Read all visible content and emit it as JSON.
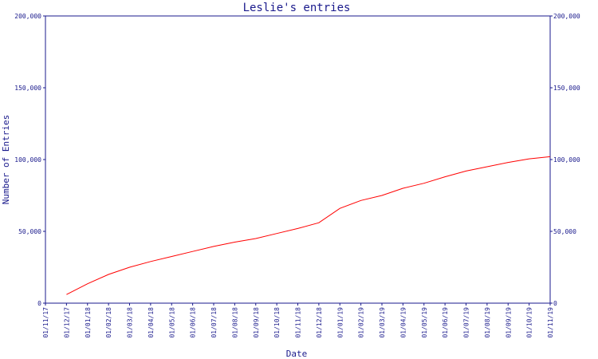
{
  "chart_data": {
    "type": "line",
    "title": "Leslie's entries",
    "xlabel": "Date",
    "ylabel": "Number of Entries",
    "ylim": [
      0,
      200000
    ],
    "y_ticks": [
      0,
      50000,
      100000,
      150000,
      200000
    ],
    "y_tick_labels": [
      "0",
      "50,000",
      "100,000",
      "150,000",
      "200,000"
    ],
    "x_tick_labels": [
      "01/11/17",
      "01/12/17",
      "01/01/18",
      "01/02/18",
      "01/03/18",
      "01/04/18",
      "01/05/18",
      "01/06/18",
      "01/07/18",
      "01/08/18",
      "01/09/18",
      "01/10/18",
      "01/11/18",
      "01/12/18",
      "01/01/19",
      "01/02/19",
      "01/03/19",
      "01/04/19",
      "01/05/19",
      "01/06/19",
      "01/07/19",
      "01/08/19",
      "01/09/19",
      "01/10/19",
      "01/11/19"
    ],
    "grid": false,
    "colors": {
      "axis": "#1a1a8c",
      "line": "#ff0000"
    },
    "series": [
      {
        "x": [
          "01/11/17",
          "01/12/17",
          "01/01/18",
          "01/02/18",
          "01/03/18",
          "01/04/18",
          "01/05/18",
          "01/06/18",
          "01/07/18",
          "01/08/18",
          "01/09/18",
          "01/10/18",
          "01/11/18",
          "01/12/18",
          "01/01/19",
          "01/02/19",
          "01/03/19",
          "01/04/19",
          "01/05/19",
          "01/06/19",
          "01/07/19",
          "01/08/19",
          "01/09/19",
          "01/10/19",
          "01/11/19"
        ],
        "values": [
          null,
          6000,
          13500,
          20000,
          25000,
          29000,
          32500,
          36000,
          39500,
          42500,
          45000,
          48500,
          52000,
          56000,
          66000,
          71500,
          75000,
          80000,
          83500,
          88000,
          92000,
          95000,
          98000,
          100500,
          102000
        ]
      }
    ]
  }
}
